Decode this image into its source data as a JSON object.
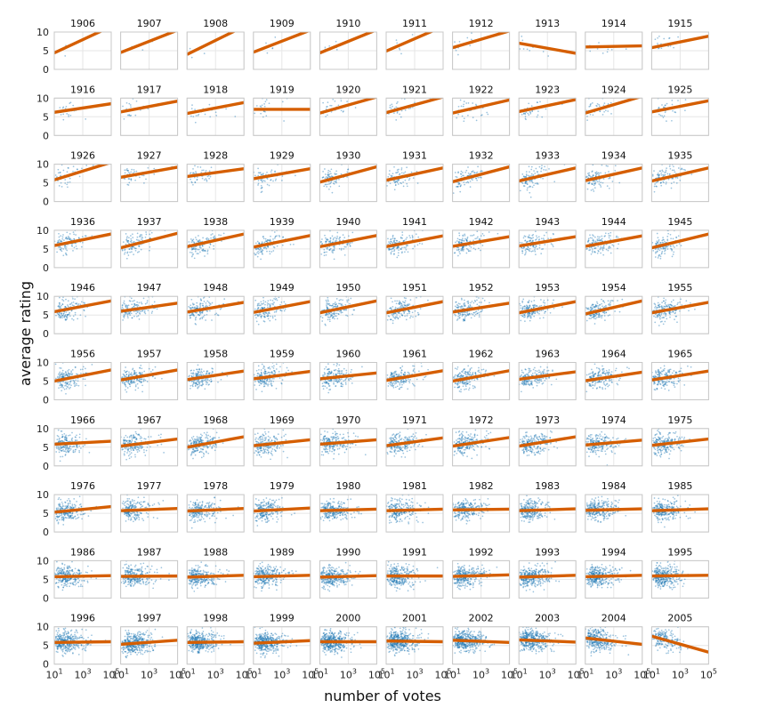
{
  "chart_data": {
    "type": "scatter",
    "layout": "small-multiples",
    "xlabel": "number of votes",
    "ylabel": "average rating",
    "x_scale": "log",
    "xlim": [
      10,
      100000
    ],
    "ylim": [
      0,
      10
    ],
    "x_ticks": [
      10,
      1000,
      100000
    ],
    "x_tick_labels": [
      {
        "base": "10",
        "exp": "1"
      },
      {
        "base": "10",
        "exp": "3"
      },
      {
        "base": "10",
        "exp": "5"
      }
    ],
    "y_ticks": [
      0,
      5,
      10
    ],
    "y_tick_labels": [
      "0",
      "5",
      "10"
    ],
    "grid": true,
    "colors": {
      "points": "#1f77b4",
      "fit_line": "#d55e00",
      "frame": "#c8c8c8"
    },
    "panels": [
      {
        "year": "1906",
        "n": 3,
        "fit": [
          4.4,
          11.5
        ]
      },
      {
        "year": "1907",
        "n": 3,
        "fit": [
          4.5,
          10.5
        ]
      },
      {
        "year": "1908",
        "n": 4,
        "fit": [
          4.0,
          11.5
        ]
      },
      {
        "year": "1909",
        "n": 5,
        "fit": [
          4.6,
          10.5
        ]
      },
      {
        "year": "1910",
        "n": 6,
        "fit": [
          4.4,
          10.6
        ]
      },
      {
        "year": "1911",
        "n": 7,
        "fit": [
          4.9,
          11.5
        ]
      },
      {
        "year": "1912",
        "n": 12,
        "fit": [
          5.8,
          10.3
        ]
      },
      {
        "year": "1913",
        "n": 10,
        "fit": [
          7.0,
          4.3
        ]
      },
      {
        "year": "1914",
        "n": 14,
        "fit": [
          6.0,
          6.3
        ]
      },
      {
        "year": "1915",
        "n": 18,
        "fit": [
          5.8,
          8.9
        ]
      },
      {
        "year": "1916",
        "n": 22,
        "fit": [
          6.2,
          8.5
        ]
      },
      {
        "year": "1917",
        "n": 20,
        "fit": [
          6.3,
          9.2
        ]
      },
      {
        "year": "1918",
        "n": 24,
        "fit": [
          5.9,
          8.8
        ]
      },
      {
        "year": "1919",
        "n": 22,
        "fit": [
          7.0,
          7.0
        ]
      },
      {
        "year": "1920",
        "n": 28,
        "fit": [
          6.0,
          10.3
        ]
      },
      {
        "year": "1921",
        "n": 30,
        "fit": [
          6.1,
          10.3
        ]
      },
      {
        "year": "1922",
        "n": 34,
        "fit": [
          6.0,
          9.5
        ]
      },
      {
        "year": "1923",
        "n": 34,
        "fit": [
          6.4,
          9.6
        ]
      },
      {
        "year": "1924",
        "n": 36,
        "fit": [
          6.0,
          10.5
        ]
      },
      {
        "year": "1925",
        "n": 40,
        "fit": [
          6.3,
          9.3
        ]
      },
      {
        "year": "1926",
        "n": 44,
        "fit": [
          5.8,
          10.5
        ]
      },
      {
        "year": "1927",
        "n": 46,
        "fit": [
          6.5,
          9.2
        ]
      },
      {
        "year": "1928",
        "n": 52,
        "fit": [
          6.7,
          8.8
        ]
      },
      {
        "year": "1929",
        "n": 56,
        "fit": [
          6.1,
          8.8
        ]
      },
      {
        "year": "1930",
        "n": 70,
        "fit": [
          5.2,
          9.3
        ]
      },
      {
        "year": "1931",
        "n": 80,
        "fit": [
          5.7,
          9.0
        ]
      },
      {
        "year": "1932",
        "n": 90,
        "fit": [
          5.3,
          9.3
        ]
      },
      {
        "year": "1933",
        "n": 95,
        "fit": [
          5.5,
          9.0
        ]
      },
      {
        "year": "1934",
        "n": 100,
        "fit": [
          5.6,
          9.0
        ]
      },
      {
        "year": "1935",
        "n": 105,
        "fit": [
          5.5,
          9.0
        ]
      },
      {
        "year": "1936",
        "n": 110,
        "fit": [
          5.9,
          9.0
        ]
      },
      {
        "year": "1937",
        "n": 115,
        "fit": [
          5.3,
          9.2
        ]
      },
      {
        "year": "1938",
        "n": 115,
        "fit": [
          5.6,
          9.0
        ]
      },
      {
        "year": "1939",
        "n": 120,
        "fit": [
          5.5,
          8.6
        ]
      },
      {
        "year": "1940",
        "n": 120,
        "fit": [
          5.6,
          8.6
        ]
      },
      {
        "year": "1941",
        "n": 125,
        "fit": [
          5.6,
          8.5
        ]
      },
      {
        "year": "1942",
        "n": 125,
        "fit": [
          5.7,
          8.3
        ]
      },
      {
        "year": "1943",
        "n": 125,
        "fit": [
          5.8,
          8.3
        ]
      },
      {
        "year": "1944",
        "n": 125,
        "fit": [
          5.7,
          8.5
        ]
      },
      {
        "year": "1945",
        "n": 125,
        "fit": [
          5.3,
          9.0
        ]
      },
      {
        "year": "1946",
        "n": 130,
        "fit": [
          5.9,
          8.8
        ]
      },
      {
        "year": "1947",
        "n": 135,
        "fit": [
          6.0,
          8.2
        ]
      },
      {
        "year": "1948",
        "n": 140,
        "fit": [
          5.8,
          8.4
        ]
      },
      {
        "year": "1949",
        "n": 140,
        "fit": [
          5.7,
          8.6
        ]
      },
      {
        "year": "1950",
        "n": 150,
        "fit": [
          5.6,
          8.8
        ]
      },
      {
        "year": "1951",
        "n": 155,
        "fit": [
          5.6,
          8.6
        ]
      },
      {
        "year": "1952",
        "n": 160,
        "fit": [
          5.8,
          8.2
        ]
      },
      {
        "year": "1953",
        "n": 160,
        "fit": [
          5.6,
          8.6
        ]
      },
      {
        "year": "1954",
        "n": 165,
        "fit": [
          5.3,
          8.8
        ]
      },
      {
        "year": "1955",
        "n": 165,
        "fit": [
          5.6,
          8.4
        ]
      },
      {
        "year": "1956",
        "n": 170,
        "fit": [
          5.0,
          8.0
        ]
      },
      {
        "year": "1957",
        "n": 170,
        "fit": [
          5.3,
          8.0
        ]
      },
      {
        "year": "1958",
        "n": 170,
        "fit": [
          5.4,
          7.7
        ]
      },
      {
        "year": "1959",
        "n": 170,
        "fit": [
          5.6,
          7.6
        ]
      },
      {
        "year": "1960",
        "n": 175,
        "fit": [
          5.6,
          7.2
        ]
      },
      {
        "year": "1961",
        "n": 175,
        "fit": [
          5.2,
          7.8
        ]
      },
      {
        "year": "1962",
        "n": 175,
        "fit": [
          5.0,
          7.8
        ]
      },
      {
        "year": "1963",
        "n": 175,
        "fit": [
          5.5,
          7.5
        ]
      },
      {
        "year": "1964",
        "n": 175,
        "fit": [
          5.1,
          7.4
        ]
      },
      {
        "year": "1965",
        "n": 180,
        "fit": [
          5.3,
          7.7
        ]
      },
      {
        "year": "1966",
        "n": 185,
        "fit": [
          5.8,
          6.6
        ]
      },
      {
        "year": "1967",
        "n": 190,
        "fit": [
          5.3,
          7.2
        ]
      },
      {
        "year": "1968",
        "n": 195,
        "fit": [
          5.0,
          7.8
        ]
      },
      {
        "year": "1969",
        "n": 195,
        "fit": [
          5.4,
          7.0
        ]
      },
      {
        "year": "1970",
        "n": 200,
        "fit": [
          5.8,
          7.0
        ]
      },
      {
        "year": "1971",
        "n": 205,
        "fit": [
          5.4,
          7.5
        ]
      },
      {
        "year": "1972",
        "n": 210,
        "fit": [
          5.3,
          7.6
        ]
      },
      {
        "year": "1973",
        "n": 210,
        "fit": [
          5.3,
          7.8
        ]
      },
      {
        "year": "1974",
        "n": 210,
        "fit": [
          5.6,
          6.9
        ]
      },
      {
        "year": "1975",
        "n": 215,
        "fit": [
          5.5,
          7.2
        ]
      },
      {
        "year": "1976",
        "n": 220,
        "fit": [
          5.3,
          6.8
        ]
      },
      {
        "year": "1977",
        "n": 220,
        "fit": [
          5.7,
          6.3
        ]
      },
      {
        "year": "1978",
        "n": 225,
        "fit": [
          5.6,
          6.3
        ]
      },
      {
        "year": "1979",
        "n": 230,
        "fit": [
          5.6,
          6.4
        ]
      },
      {
        "year": "1980",
        "n": 240,
        "fit": [
          5.7,
          6.1
        ]
      },
      {
        "year": "1981",
        "n": 240,
        "fit": [
          5.7,
          6.1
        ]
      },
      {
        "year": "1982",
        "n": 240,
        "fit": [
          5.9,
          6.1
        ]
      },
      {
        "year": "1983",
        "n": 245,
        "fit": [
          5.7,
          6.2
        ]
      },
      {
        "year": "1984",
        "n": 250,
        "fit": [
          5.8,
          6.2
        ]
      },
      {
        "year": "1985",
        "n": 255,
        "fit": [
          5.7,
          6.2
        ]
      },
      {
        "year": "1986",
        "n": 260,
        "fit": [
          5.7,
          6.0
        ]
      },
      {
        "year": "1987",
        "n": 265,
        "fit": [
          5.8,
          5.9
        ]
      },
      {
        "year": "1988",
        "n": 270,
        "fit": [
          5.6,
          6.1
        ]
      },
      {
        "year": "1989",
        "n": 280,
        "fit": [
          5.7,
          6.1
        ]
      },
      {
        "year": "1990",
        "n": 290,
        "fit": [
          5.6,
          6.0
        ]
      },
      {
        "year": "1991",
        "n": 300,
        "fit": [
          5.9,
          5.9
        ]
      },
      {
        "year": "1992",
        "n": 310,
        "fit": [
          5.8,
          6.2
        ]
      },
      {
        "year": "1993",
        "n": 320,
        "fit": [
          5.6,
          6.1
        ]
      },
      {
        "year": "1994",
        "n": 330,
        "fit": [
          5.7,
          6.1
        ]
      },
      {
        "year": "1995",
        "n": 340,
        "fit": [
          5.9,
          6.1
        ]
      },
      {
        "year": "1996",
        "n": 360,
        "fit": [
          5.8,
          6.0
        ]
      },
      {
        "year": "1997",
        "n": 370,
        "fit": [
          5.3,
          6.4
        ]
      },
      {
        "year": "1998",
        "n": 380,
        "fit": [
          5.8,
          6.0
        ]
      },
      {
        "year": "1999",
        "n": 400,
        "fit": [
          5.6,
          6.3
        ]
      },
      {
        "year": "2000",
        "n": 410,
        "fit": [
          6.0,
          6.0
        ]
      },
      {
        "year": "2001",
        "n": 420,
        "fit": [
          6.2,
          6.0
        ]
      },
      {
        "year": "2002",
        "n": 420,
        "fit": [
          6.4,
          5.8
        ]
      },
      {
        "year": "2003",
        "n": 400,
        "fit": [
          6.5,
          5.9
        ]
      },
      {
        "year": "2004",
        "n": 340,
        "fit": [
          7.0,
          5.3
        ]
      },
      {
        "year": "2005",
        "n": 180,
        "fit": [
          7.5,
          3.2
        ]
      }
    ]
  }
}
